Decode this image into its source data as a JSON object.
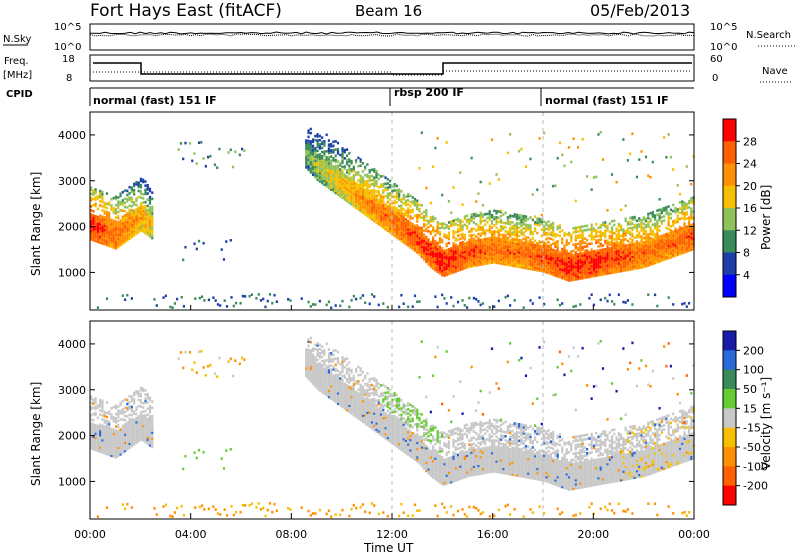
{
  "header": {
    "station": "Fort Hays East (fitACF)",
    "beam": "Beam 16",
    "date": "05/Feb/2013"
  },
  "panels": {
    "nsky_label": "N.Sky",
    "nsky_ticks": [
      "10^5",
      "10^0"
    ],
    "nsearch_label": "N.Search",
    "nsearch_ticks": [
      "10^5",
      "10^0"
    ],
    "freq_label": "Freq.",
    "freq_unit": "[MHz]",
    "freq_ticks": [
      "18",
      "8"
    ],
    "nave_label": "Nave",
    "nave_ticks": [
      "60",
      "0"
    ],
    "cpid_label": "CPID",
    "cpid_segments": [
      "normal (fast) 151 IF",
      "rbsp 200 IF",
      "normal (fast) 151 IF"
    ]
  },
  "chart_data": [
    {
      "type": "heatmap",
      "title": "Power",
      "xlabel": "Time UT",
      "ylabel": "Slant Range [km]",
      "colorbar_label": "Power [dB]",
      "colorbar_ticks": [
        "28",
        "24",
        "20",
        "16",
        "12",
        "8",
        "4"
      ],
      "colorbar_colors": [
        "#ff0000",
        "#ff6000",
        "#ff9000",
        "#f5c000",
        "#8fc25a",
        "#3a8a5a",
        "#1e3fa8",
        "#0000ff"
      ],
      "xlim": [
        0,
        24
      ],
      "ylim": [
        180,
        4500
      ],
      "yticks": [
        "4000",
        "3000",
        "2000",
        "1000"
      ],
      "xticks": [
        "00:00",
        "04:00",
        "08:00",
        "12:00",
        "16:00",
        "20:00",
        "00:00"
      ],
      "x_hours": [
        0,
        0.5,
        1,
        1.5,
        2,
        2.5,
        3,
        4,
        5,
        6,
        8.5,
        9,
        10,
        11,
        12,
        13,
        13.5,
        14,
        15,
        16,
        17,
        18,
        19,
        20,
        21,
        22,
        23,
        24
      ],
      "main_echo_range_km": [
        2000,
        1900,
        1800,
        2000,
        2200,
        2000,
        0,
        0,
        0,
        0,
        3600,
        3300,
        2900,
        2500,
        2100,
        1700,
        1400,
        1200,
        1400,
        1500,
        1400,
        1300,
        1100,
        1200,
        1300,
        1400,
        1600,
        1800
      ],
      "main_echo_power_db": [
        28,
        26,
        24,
        22,
        20,
        16,
        0,
        0,
        0,
        0,
        10,
        14,
        18,
        22,
        24,
        26,
        28,
        28,
        26,
        24,
        24,
        26,
        28,
        28,
        26,
        24,
        24,
        26
      ]
    },
    {
      "type": "heatmap",
      "title": "Velocity",
      "xlabel": "Time UT",
      "ylabel": "Slant Range [km]",
      "colorbar_label": "Velocity [m s⁻¹]",
      "colorbar_ticks": [
        "200",
        "100",
        "50",
        "15",
        "-15",
        "-50",
        "-100",
        "-200"
      ],
      "colorbar_colors": [
        "#1a1aa8",
        "#2a6ad8",
        "#3a8a5a",
        "#66cc33",
        "#c8c8c8",
        "#f5c000",
        "#ff9000",
        "#ff6000",
        "#ff0000"
      ],
      "xlim": [
        0,
        24
      ],
      "ylim": [
        180,
        4500
      ],
      "yticks": [
        "4000",
        "3000",
        "2000",
        "1000"
      ],
      "xticks": [
        "00:00",
        "04:00",
        "08:00",
        "12:00",
        "16:00",
        "20:00",
        "00:00"
      ]
    }
  ]
}
